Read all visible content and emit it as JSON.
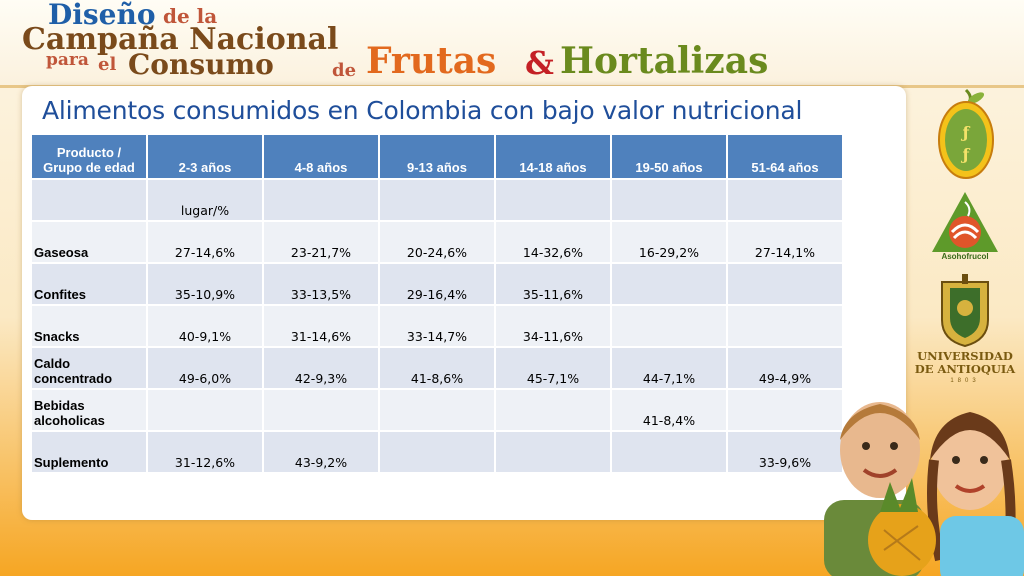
{
  "banner": {
    "line_disenio": "Diseño",
    "line_dela": "de la",
    "line_campania": "Campaña Nacional",
    "line_para": "para",
    "line_el": "el",
    "line_consumo": "Consumo",
    "line_de": "de",
    "line_frutas": "Frutas",
    "line_amp": "&",
    "line_hortalizas": "Hortalizas"
  },
  "title": "Alimentos consumidos en Colombia con bajo valor nutricional",
  "table": {
    "headers": [
      "Producto /\nGrupo de edad",
      "2-3 años",
      "4-8 años",
      "9-13 años",
      "14-18 años",
      "19-50 años",
      "51-64 años"
    ],
    "rows": [
      [
        "",
        "lugar/%",
        "",
        "",
        "",
        "",
        ""
      ],
      [
        "Gaseosa",
        "27-14,6%",
        "23-21,7%",
        "20-24,6%",
        "14-32,6%",
        "16-29,2%",
        "27-14,1%"
      ],
      [
        "Confites",
        "35-10,9%",
        "33-13,5%",
        "29-16,4%",
        "35-11,6%",
        "",
        ""
      ],
      [
        "Snacks",
        "40-9,1%",
        "31-14,6%",
        "33-14,7%",
        "34-11,6%",
        "",
        ""
      ],
      [
        "Caldo\nconcentrado",
        "49-6,0%",
        "42-9,3%",
        "41-8,6%",
        "45-7,1%",
        "44-7,1%",
        "49-4,9%"
      ],
      [
        "Bebidas\nalcoholicas",
        "",
        "",
        "",
        "",
        "41-8,4%",
        ""
      ],
      [
        "Suplemento",
        "31-12,6%",
        "43-9,2%",
        "",
        "",
        "",
        "33-9,6%"
      ]
    ]
  },
  "logos": {
    "asohofrucol": "Asohofrucol",
    "university_line1": "UNIVERSIDAD",
    "university_line2": "DE ANTIOQUIA",
    "university_year": "1803"
  },
  "colors": {
    "header_blue": "#4f81bd",
    "row_dark": "#dfe4ef",
    "row_light": "#eef1f6",
    "title_blue": "#1f4e9a"
  }
}
